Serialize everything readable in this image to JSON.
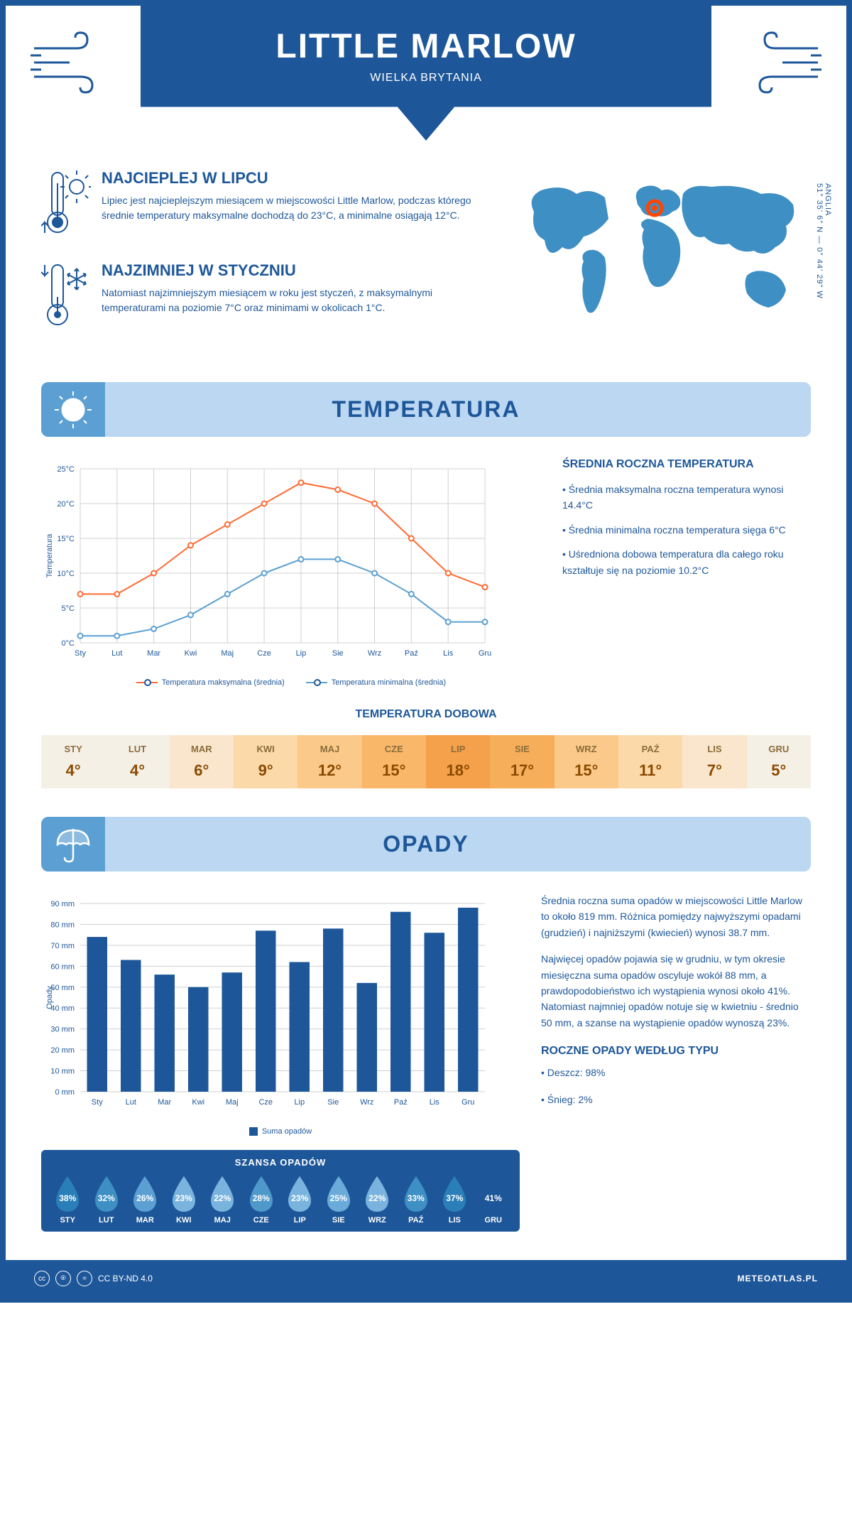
{
  "header": {
    "title": "LITTLE MARLOW",
    "subtitle": "WIELKA BRYTANIA"
  },
  "coords": {
    "lat": "51° 35' 6\" N",
    "lon": "0° 44' 29\" W",
    "region": "ANGLIA"
  },
  "warmest": {
    "title": "NAJCIEPLEJ W LIPCU",
    "text": "Lipiec jest najcieplejszym miesiącem w miejscowości Little Marlow, podczas którego średnie temperatury maksymalne dochodzą do 23°C, a minimalne osiągają 12°C."
  },
  "coldest": {
    "title": "NAJZIMNIEJ W STYCZNIU",
    "text": "Natomiast najzimniejszym miesiącem w roku jest styczeń, z maksymalnymi temperaturami na poziomie 7°C oraz minimami w okolicach 1°C."
  },
  "temp_section": {
    "heading": "TEMPERATURA",
    "annual_title": "ŚREDNIA ROCZNA TEMPERATURA",
    "bullets": [
      "• Średnia maksymalna roczna temperatura wynosi 14.4°C",
      "• Średnia minimalna roczna temperatura sięga 6°C",
      "• Uśredniona dobowa temperatura dla całego roku kształtuje się na poziomie 10.2°C"
    ],
    "daily_title": "TEMPERATURA DOBOWA",
    "chart": {
      "months": [
        "Sty",
        "Lut",
        "Mar",
        "Kwi",
        "Maj",
        "Cze",
        "Lip",
        "Sie",
        "Wrz",
        "Paź",
        "Lis",
        "Gru"
      ],
      "max": [
        7,
        7,
        10,
        14,
        17,
        20,
        23,
        22,
        20,
        15,
        10,
        8
      ],
      "min": [
        1,
        1,
        2,
        4,
        7,
        10,
        12,
        12,
        10,
        7,
        3,
        3
      ],
      "ylabel": "Temperatura",
      "ylim": [
        0,
        25
      ],
      "ytick_step": 5,
      "y_suffix": "°C",
      "max_color": "#ff6b35",
      "min_color": "#5ca0d3",
      "grid_color": "#d0d0d0",
      "legend_max": "Temperatura maksymalna (średnia)",
      "legend_min": "Temperatura minimalna (średnia)"
    },
    "daily_table": {
      "months": [
        "STY",
        "LUT",
        "MAR",
        "KWI",
        "MAJ",
        "CZE",
        "LIP",
        "SIE",
        "WRZ",
        "PAŹ",
        "LIS",
        "GRU"
      ],
      "values": [
        "4°",
        "4°",
        "6°",
        "9°",
        "12°",
        "15°",
        "18°",
        "17°",
        "15°",
        "11°",
        "7°",
        "5°"
      ],
      "colors": [
        "#f5f0e6",
        "#f5f0e6",
        "#f9e6cc",
        "#fbd9a8",
        "#fbc98a",
        "#f9b76a",
        "#f5a04a",
        "#f7ae5a",
        "#fbc98a",
        "#fbd9a8",
        "#f9e6cc",
        "#f5f0e6"
      ]
    }
  },
  "precip_section": {
    "heading": "OPADY",
    "chart": {
      "months": [
        "Sty",
        "Lut",
        "Mar",
        "Kwi",
        "Maj",
        "Cze",
        "Lip",
        "Sie",
        "Wrz",
        "Paź",
        "Lis",
        "Gru"
      ],
      "values": [
        74,
        63,
        56,
        50,
        57,
        77,
        62,
        78,
        52,
        86,
        76,
        88
      ],
      "ylabel": "Opady",
      "ylim": [
        0,
        90
      ],
      "ytick_step": 10,
      "y_suffix": " mm",
      "bar_color": "#1e5799",
      "grid_color": "#d0d0d0",
      "legend": "Suma opadów"
    },
    "text1": "Średnia roczna suma opadów w miejscowości Little Marlow to około 819 mm. Różnica pomiędzy najwyższymi opadami (grudzień) i najniższymi (kwiecień) wynosi 38.7 mm.",
    "text2": "Najwięcej opadów pojawia się w grudniu, w tym okresie miesięczna suma opadów oscyluje wokół 88 mm, a prawdopodobieństwo ich wystąpienia wynosi około 41%. Natomiast najmniej opadów notuje się w kwietniu - średnio 50 mm, a szanse na wystąpienie opadów wynoszą 23%.",
    "type_title": "ROCZNE OPADY WEDŁUG TYPU",
    "type_bullets": [
      "• Deszcz: 98%",
      "• Śnieg: 2%"
    ],
    "chance": {
      "title": "SZANSA OPADÓW",
      "months": [
        "STY",
        "LUT",
        "MAR",
        "KWI",
        "MAJ",
        "CZE",
        "LIP",
        "SIE",
        "WRZ",
        "PAŹ",
        "LIS",
        "GRU"
      ],
      "values": [
        "38%",
        "32%",
        "26%",
        "23%",
        "22%",
        "28%",
        "23%",
        "25%",
        "22%",
        "33%",
        "37%",
        "41%"
      ],
      "colors": [
        "#2a7fb8",
        "#3e8fc4",
        "#5ca0d3",
        "#7ab4de",
        "#7ab4de",
        "#4e98ca",
        "#7ab4de",
        "#6aabda",
        "#7ab4de",
        "#3e8fc4",
        "#2a7fb8",
        "#1e5799"
      ]
    }
  },
  "footer": {
    "license": "CC BY-ND 4.0",
    "site": "METEOATLAS.PL"
  }
}
